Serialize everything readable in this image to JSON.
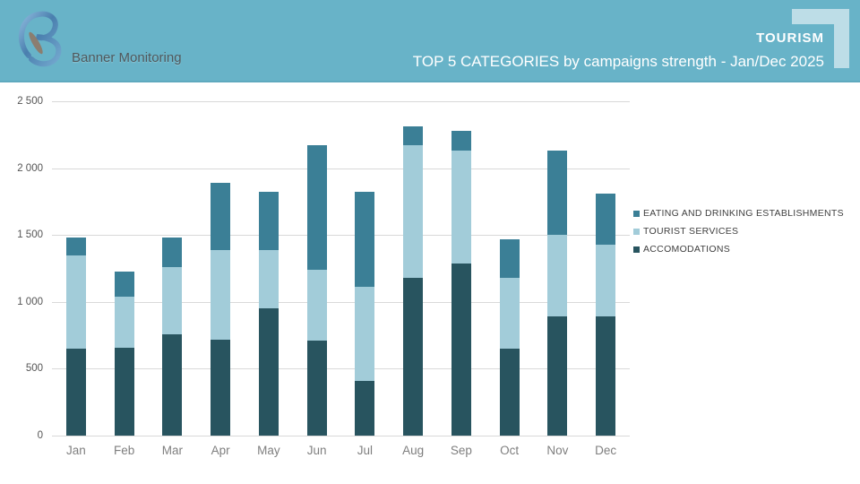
{
  "header": {
    "brand": "Banner Monitoring",
    "tag": "TOURISM",
    "title": "TOP 5 CATEGORIES by campaigns strength - Jan/Dec 2025"
  },
  "icons": {
    "logo": "stylized-b-swoosh-with-gray-leaf",
    "corner_bracket": "corner-frame-accent"
  },
  "colors": {
    "header_bg": "#68b3c8",
    "header_text": "#ffffff",
    "brand_text": "#4f585c",
    "corner_bracket": "#bddde7",
    "gridline": "#d9d9d9",
    "y_axis_label": "#555555",
    "month_label": "#7f7f7f",
    "legend_text": "#404040",
    "series_accommodations": "#28545f",
    "series_tourist_services": "#a2ccd9",
    "series_eating": "#3b7f96"
  },
  "chart_data": {
    "type": "bar",
    "stacked": true,
    "title": "TOP 5 CATEGORIES by campaigns strength - Jan/Dec 2025",
    "grid": true,
    "legend_position": "right",
    "categories": [
      "Jan",
      "Feb",
      "Mar",
      "Apr",
      "May",
      "Jun",
      "Jul",
      "Aug",
      "Sep",
      "Oct",
      "Nov",
      "Dec"
    ],
    "series": [
      {
        "name": "ACCOMODATIONS",
        "color": "#28545f",
        "values": [
          650,
          660,
          760,
          720,
          950,
          710,
          410,
          1180,
          1290,
          650,
          890,
          890
        ]
      },
      {
        "name": "TOURIST SERVICES",
        "color": "#a2ccd9",
        "values": [
          700,
          380,
          500,
          670,
          440,
          530,
          700,
          990,
          840,
          530,
          610,
          540
        ]
      },
      {
        "name": "EATING AND DRINKING ESTABLISHMENTS",
        "color": "#3b7f96",
        "values": [
          130,
          190,
          220,
          500,
          430,
          930,
          710,
          140,
          150,
          290,
          630,
          380
        ]
      }
    ],
    "totals": [
      1480,
      1230,
      1480,
      1890,
      1820,
      2170,
      1820,
      2310,
      2280,
      1470,
      2130,
      1810
    ],
    "legend_order": [
      "EATING AND DRINKING ESTABLISHMENTS",
      "TOURIST SERVICES",
      "ACCOMODATIONS"
    ],
    "y_ticks": [
      {
        "label": "2 500",
        "value": 2500
      },
      {
        "label": "2 000",
        "value": 2000
      },
      {
        "label": "1 500",
        "value": 1500
      },
      {
        "label": "1 000",
        "value": 1000
      },
      {
        "label": "500",
        "value": 500
      },
      {
        "label": "0",
        "value": 0
      }
    ],
    "ylim": [
      0,
      2500
    ]
  }
}
